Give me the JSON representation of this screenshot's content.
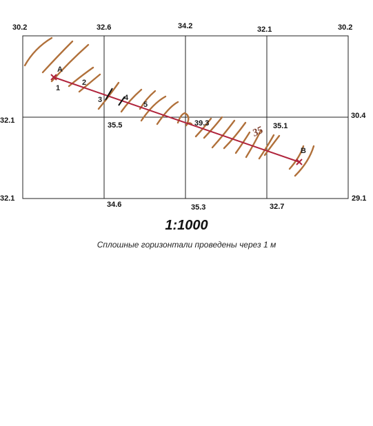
{
  "map": {
    "grid_heights": {
      "top": [
        "30.2",
        "32.6",
        "34.2",
        "32.1",
        "30.2"
      ],
      "middle_left": "32.1",
      "middle_right": "30.4",
      "bottom": [
        "32.1",
        "34.6",
        "35.3",
        "32.7",
        "29.1"
      ],
      "inner": [
        "35.5",
        "39.3",
        "35.1"
      ]
    },
    "points": {
      "start": "A",
      "end": "B"
    },
    "profile_marks": [
      "1",
      "2",
      "3",
      "4",
      "5"
    ],
    "contour_label": "35",
    "colors": {
      "profile_line": "#b0243c",
      "contour": "#b0703a",
      "grid": "#222222"
    }
  },
  "scale": "1:1000",
  "caption": "Сплошные горизонтали проведены через 1 м"
}
